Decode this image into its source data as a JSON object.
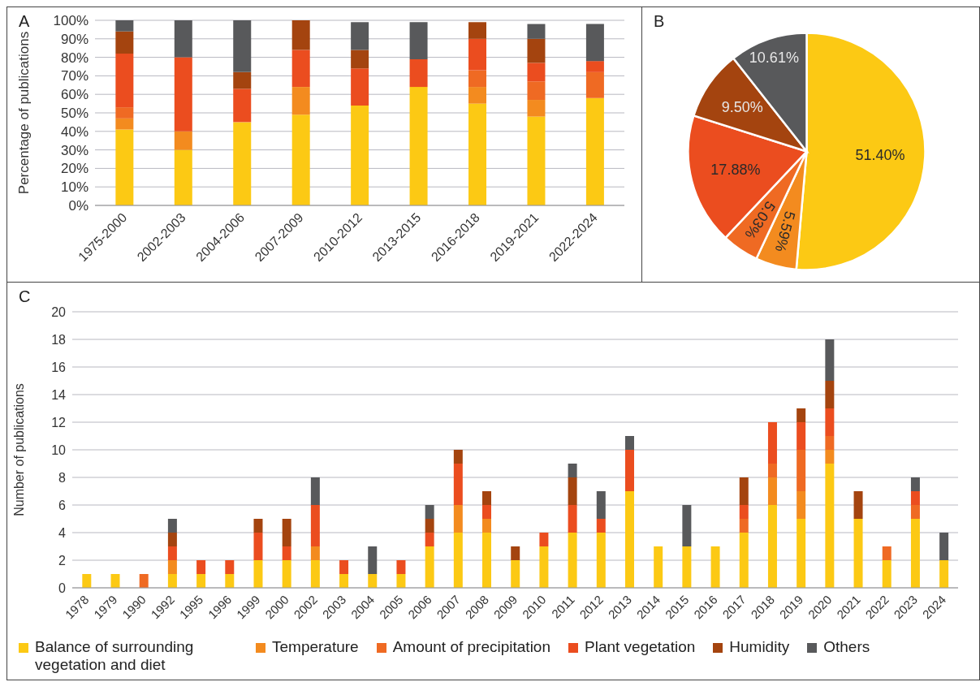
{
  "chart_data": [
    {
      "type": "bar",
      "title": "A",
      "ylabel": "Percentage of publications",
      "stacked": true,
      "grid": "y",
      "legend": false,
      "categories": [
        "1975-2000",
        "2002-2003",
        "2004-2006",
        "2007-2009",
        "2010-2012",
        "2013-2015",
        "2016-2018",
        "2019-2021",
        "2022-2024"
      ],
      "ylim": [
        0,
        100
      ],
      "yticks": [
        {
          "value": 0,
          "label": "0%"
        },
        {
          "value": 10,
          "label": "10%"
        },
        {
          "value": 20,
          "label": "20%"
        },
        {
          "value": 30,
          "label": "30%"
        },
        {
          "value": 40,
          "label": "40%"
        },
        {
          "value": 50,
          "label": "50%"
        },
        {
          "value": 60,
          "label": "60%"
        },
        {
          "value": 70,
          "label": "70%"
        },
        {
          "value": 80,
          "label": "80%"
        },
        {
          "value": 90,
          "label": "90%"
        },
        {
          "value": 100,
          "label": "100%"
        }
      ],
      "series": [
        {
          "color": "#fcc914",
          "values": [
            41,
            30,
            45,
            49,
            54,
            64,
            55,
            48,
            58
          ]
        },
        {
          "color": "#f38b1f",
          "values": [
            6,
            10,
            0,
            15,
            0,
            0,
            9,
            9,
            0
          ]
        },
        {
          "color": "#ef6a23",
          "values": [
            6,
            0,
            0,
            0,
            0,
            0,
            9,
            10,
            14
          ]
        },
        {
          "color": "#eb4d1f",
          "values": [
            29,
            40,
            18,
            20,
            20,
            15,
            17,
            10,
            6
          ]
        },
        {
          "color": "#a4440f",
          "values": [
            12,
            0,
            9,
            16,
            10,
            0,
            9,
            13,
            0
          ]
        },
        {
          "color": "#58595b",
          "values": [
            6,
            20,
            28,
            0,
            15,
            20,
            0,
            8,
            20
          ]
        }
      ]
    },
    {
      "type": "pie",
      "title": "B",
      "categories": [
        null,
        null,
        null,
        null,
        null,
        null
      ],
      "values": [
        51.4,
        5.59,
        5.03,
        17.88,
        9.5,
        10.61
      ],
      "value_labels": [
        "51.40%",
        "5.59%",
        "5.03%",
        "17.88%",
        "9.50%",
        "10.61%"
      ],
      "colors": [
        "#fcc914",
        "#f38b1f",
        "#ef6a23",
        "#eb4d1f",
        "#a4440f",
        "#58595b"
      ]
    },
    {
      "type": "bar",
      "title": "C",
      "ylabel": "Number of publications",
      "stacked": true,
      "grid": "y",
      "legend": "bottom",
      "categories": [
        "1978",
        "1979",
        "1990",
        "1992",
        "1995",
        "1996",
        "1999",
        "2000",
        "2002",
        "2003",
        "2004",
        "2005",
        "2006",
        "2007",
        "2008",
        "2009",
        "2010",
        "2011",
        "2012",
        "2013",
        "2014",
        "2015",
        "2016",
        "2017",
        "2018",
        "2019",
        "2020",
        "2021",
        "2022",
        "2023",
        "2024"
      ],
      "ylim": [
        0,
        20
      ],
      "yticks": [
        0,
        2,
        4,
        6,
        8,
        10,
        12,
        14,
        16,
        18,
        20
      ],
      "series": [
        {
          "name": "Balance of surrounding vegetation and diet",
          "color": "#fcc914",
          "values": [
            1,
            1,
            0,
            1,
            1,
            1,
            2,
            2,
            2,
            1,
            1,
            1,
            3,
            4,
            4,
            2,
            3,
            4,
            4,
            7,
            3,
            3,
            3,
            4,
            6,
            5,
            9,
            5,
            2,
            5,
            2
          ]
        },
        {
          "name": "Temperature",
          "color": "#f38b1f",
          "values": [
            0,
            0,
            0,
            1,
            0,
            0,
            0,
            0,
            1,
            0,
            0,
            0,
            0,
            2,
            1,
            0,
            0,
            0,
            0,
            0,
            0,
            0,
            0,
            0,
            2,
            2,
            1,
            0,
            0,
            0,
            0
          ]
        },
        {
          "name": "Amount of precipitation",
          "color": "#ef6a23",
          "values": [
            0,
            0,
            1,
            0,
            0,
            0,
            0,
            0,
            0,
            0,
            0,
            0,
            0,
            0,
            0,
            0,
            0,
            0,
            0,
            0,
            0,
            0,
            0,
            1,
            1,
            3,
            1,
            0,
            1,
            1,
            0
          ]
        },
        {
          "name": "Plant vegetation",
          "color": "#eb4d1f",
          "values": [
            0,
            0,
            0,
            1,
            1,
            1,
            2,
            1,
            3,
            1,
            0,
            1,
            1,
            3,
            1,
            0,
            1,
            2,
            1,
            3,
            0,
            0,
            0,
            1,
            3,
            2,
            2,
            0,
            0,
            1,
            0
          ]
        },
        {
          "name": "Humidity",
          "color": "#a4440f",
          "values": [
            0,
            0,
            0,
            1,
            0,
            0,
            1,
            2,
            0,
            0,
            0,
            0,
            1,
            1,
            1,
            1,
            0,
            2,
            0,
            0,
            0,
            0,
            0,
            2,
            0,
            1,
            2,
            2,
            0,
            0,
            0
          ]
        },
        {
          "name": "Others",
          "color": "#58595b",
          "values": [
            0,
            0,
            0,
            1,
            0,
            0,
            0,
            0,
            2,
            0,
            2,
            0,
            1,
            0,
            0,
            0,
            0,
            1,
            2,
            1,
            0,
            3,
            0,
            0,
            0,
            0,
            3,
            0,
            0,
            1,
            2
          ]
        }
      ]
    }
  ]
}
